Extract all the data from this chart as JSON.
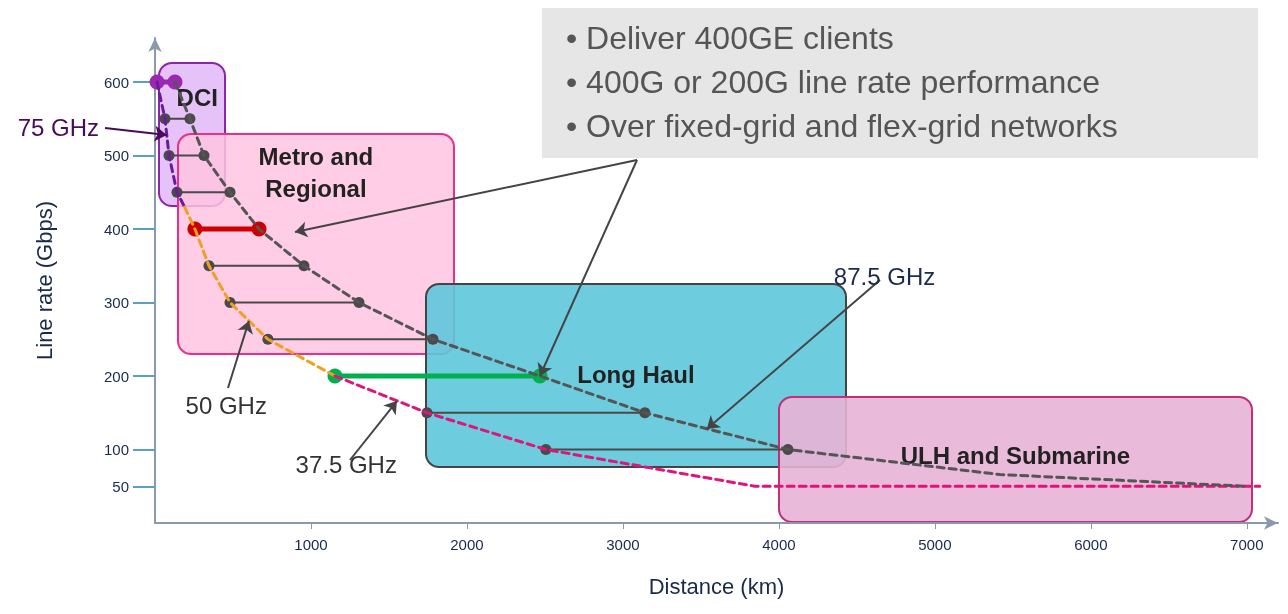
{
  "chart_data": {
    "type": "line",
    "xlabel": "Distance (km)",
    "ylabel": "Line rate (Gbps)",
    "xlim": [
      0,
      7200
    ],
    "xticks": [
      1000,
      2000,
      3000,
      4000,
      5000,
      6000,
      7000
    ],
    "ylim": [
      0,
      660
    ],
    "yticks": [
      50,
      100,
      200,
      300,
      400,
      500,
      600
    ],
    "series": [
      {
        "color": "#6a1b9a",
        "line_style": "dashed",
        "x": [
          13,
          64,
          90,
          141,
          190
        ],
        "values": [
          600,
          550,
          500,
          450,
          430
        ]
      },
      {
        "color": "#f0a020",
        "line_style": "dashed",
        "x": [
          190,
          256,
          346,
          481,
          724,
          1154
        ],
        "values": [
          430,
          400,
          350,
          300,
          250,
          200
        ]
      },
      {
        "color": "#e0157a",
        "line_style": "dashed",
        "x": [
          1154,
          1744,
          2506,
          3846,
          7083
        ],
        "values": [
          200,
          150,
          100,
          50,
          50
        ]
      },
      {
        "color": "#555555",
        "line_style": "dashed",
        "x": [
          128,
          224,
          314,
          481,
          667,
          955,
          1308,
          1782,
          2468,
          3141,
          4058,
          5417,
          6987
        ],
        "values": [
          600,
          550,
          500,
          450,
          400,
          350,
          300,
          250,
          200,
          150,
          100,
          66,
          50
        ]
      },
      {
        "color": "#9c27b0",
        "line_style": "solid",
        "marker": "circle",
        "x": [
          13,
          128
        ],
        "values": [
          600,
          600
        ]
      },
      {
        "color": "#cc0000",
        "line_style": "solid",
        "marker": "circle",
        "x": [
          256,
          667
        ],
        "values": [
          400,
          400
        ]
      },
      {
        "color": "#00b050",
        "line_style": "solid",
        "marker": "circle",
        "x": [
          1154,
          2468
        ],
        "values": [
          200,
          200
        ]
      },
      {
        "color": "#4a4a4a",
        "line_style": "solid",
        "marker": "circle",
        "x": [
          64,
          224
        ],
        "values": [
          550,
          550
        ]
      },
      {
        "color": "#4a4a4a",
        "line_style": "solid",
        "marker": "circle",
        "x": [
          90,
          314
        ],
        "values": [
          500,
          500
        ]
      },
      {
        "color": "#4a4a4a",
        "line_style": "solid",
        "marker": "circle",
        "x": [
          141,
          481
        ],
        "values": [
          450,
          450
        ]
      },
      {
        "color": "#4a4a4a",
        "line_style": "solid",
        "marker": "circle",
        "x": [
          346,
          955
        ],
        "values": [
          350,
          350
        ]
      },
      {
        "color": "#4a4a4a",
        "line_style": "solid",
        "marker": "circle",
        "x": [
          481,
          1308
        ],
        "values": [
          300,
          300
        ]
      },
      {
        "color": "#4a4a4a",
        "line_style": "solid",
        "marker": "circle",
        "x": [
          724,
          1782
        ],
        "values": [
          250,
          250
        ]
      },
      {
        "color": "#4a4a4a",
        "line_style": "solid",
        "marker": "circle",
        "x": [
          1744,
          3141
        ],
        "values": [
          150,
          150
        ]
      },
      {
        "color": "#4a4a4a",
        "line_style": "solid",
        "marker": "circle",
        "x": [
          2506,
          4058
        ],
        "values": [
          100,
          100
        ]
      }
    ],
    "annotations": [
      {
        "text": "75 GHz",
        "x": 75,
        "y": 528
      },
      {
        "text": "50 GHz",
        "x": 602,
        "y": 275
      },
      {
        "text": "37.5 GHz",
        "x": 1551,
        "y": 166
      },
      {
        "text": "87.5 GHz",
        "x": 3538,
        "y": 128
      },
      "DCI",
      "Metro and Regional",
      "Long Haul",
      "ULH and Submarine",
      "• Deliver 400GE clients",
      "• 400G or 200G line rate performance",
      {
        "text": "• Over fixed-grid and flex-grid networks",
        "x": 2468,
        "y": 200
      }
    ]
  }
}
